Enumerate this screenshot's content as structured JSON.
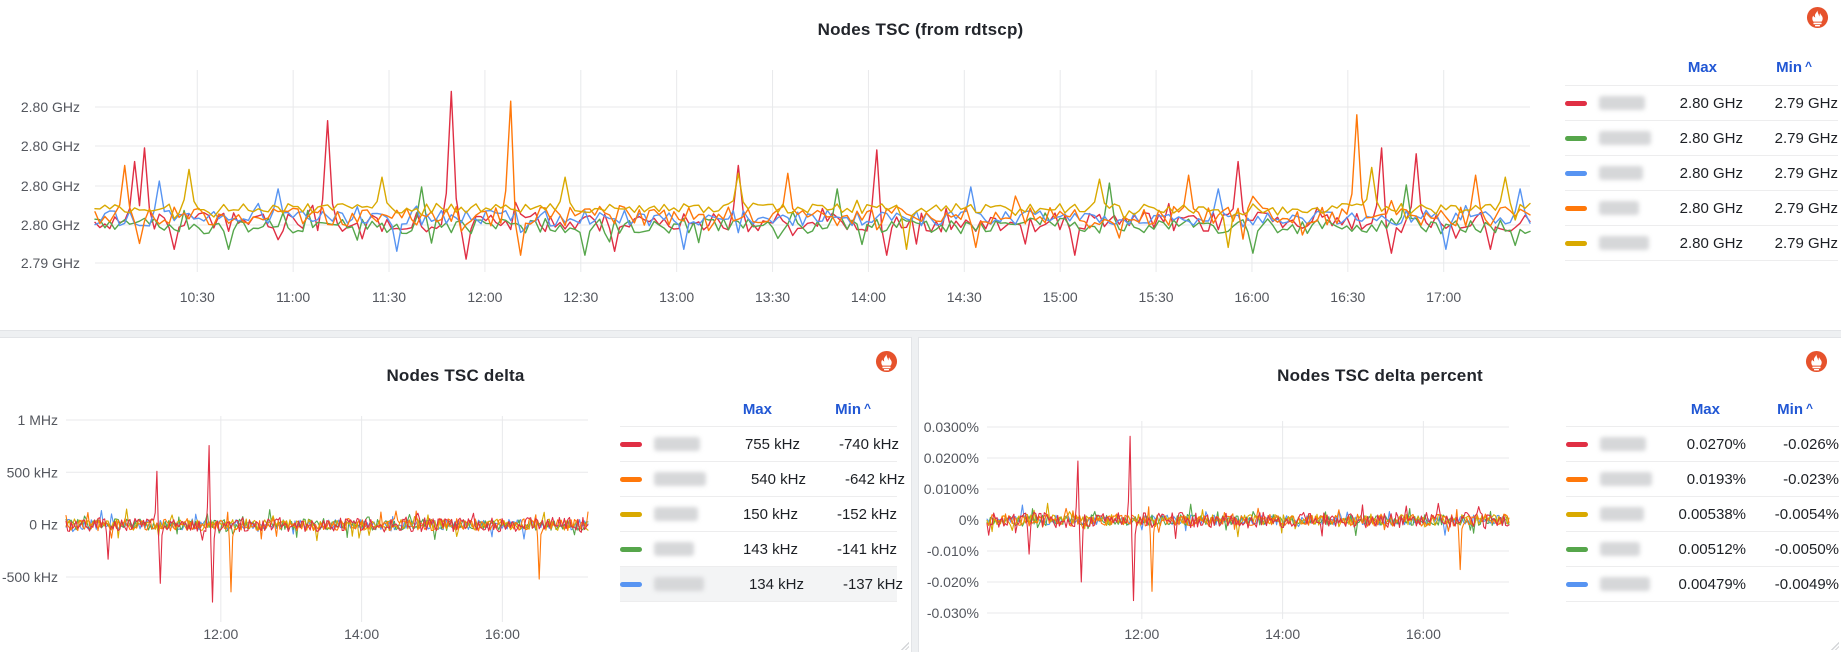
{
  "page": {
    "background": "#eef0f2",
    "panel_background": "#ffffff"
  },
  "palette": {
    "red": "#e02f44",
    "green": "#56a64b",
    "blue": "#5794f2",
    "orange": "#ff780a",
    "yellow": "#d9a900",
    "legend_header_blue": "#2157d4",
    "axis_text": "#54575e",
    "grid_line": "#e8e9eb",
    "prometheus_orange": "#e6522c"
  },
  "panels": [
    {
      "id": "nodes-tsc",
      "datasource_icon": "prometheus",
      "legend": {
        "max_label": "Max",
        "min_label": "Min",
        "sort_caret": "^",
        "highlighted_row": -1
      }
    },
    {
      "id": "nodes-tsc-delta",
      "datasource_icon": "prometheus",
      "legend": {
        "max_label": "Max",
        "min_label": "Min",
        "sort_caret": "^",
        "highlighted_row": 4
      }
    },
    {
      "id": "nodes-tsc-delta-percent",
      "datasource_icon": "prometheus",
      "legend": {
        "max_label": "Max",
        "min_label": "Min",
        "sort_caret": "^",
        "highlighted_row": -1
      }
    }
  ],
  "chart_data": [
    {
      "id": "nodes-tsc",
      "type": "line",
      "title": "Nodes TSC (from rdtscp)",
      "unit": "GHz",
      "x_range_minutes": [
        598,
        1047
      ],
      "x_ticks": [
        {
          "m": 630,
          "label": "10:30"
        },
        {
          "m": 660,
          "label": "11:00"
        },
        {
          "m": 690,
          "label": "11:30"
        },
        {
          "m": 720,
          "label": "12:00"
        },
        {
          "m": 750,
          "label": "12:30"
        },
        {
          "m": 780,
          "label": "13:00"
        },
        {
          "m": 810,
          "label": "13:30"
        },
        {
          "m": 840,
          "label": "14:00"
        },
        {
          "m": 870,
          "label": "14:30"
        },
        {
          "m": 900,
          "label": "15:00"
        },
        {
          "m": 930,
          "label": "15:30"
        },
        {
          "m": 960,
          "label": "16:00"
        },
        {
          "m": 990,
          "label": "16:30"
        },
        {
          "m": 1020,
          "label": "17:00"
        }
      ],
      "y_ticks": [
        {
          "v": 2.802,
          "label": "2.80 GHz"
        },
        {
          "v": 2.8,
          "label": "2.80 GHz"
        },
        {
          "v": 2.798,
          "label": "2.80 GHz"
        },
        {
          "v": 2.796,
          "label": "2.80 GHz"
        },
        {
          "v": 2.794,
          "label": "2.79 GHz"
        }
      ],
      "legend_position": "right",
      "grid": true,
      "draw_order": [
        "red",
        "green",
        "blue",
        "orange",
        "yellow"
      ],
      "series": [
        {
          "color": "red",
          "label_redacted": true,
          "max": "2.80 GHz",
          "min": "2.79 GHz",
          "baseline": 2.7961,
          "noise": 0.0005,
          "spikes": [
            {
              "t": 610,
              "v": 2.7992
            },
            {
              "t": 614,
              "v": 2.7999
            },
            {
              "t": 622,
              "v": 2.7947
            },
            {
              "t": 670,
              "v": 2.8013
            },
            {
              "t": 710,
              "v": 2.8028
            },
            {
              "t": 714,
              "v": 2.7942
            },
            {
              "t": 760,
              "v": 2.7946
            },
            {
              "t": 800,
              "v": 2.799
            },
            {
              "t": 842,
              "v": 2.7998
            },
            {
              "t": 845,
              "v": 2.7944
            },
            {
              "t": 905,
              "v": 2.7944
            },
            {
              "t": 955,
              "v": 2.7992
            },
            {
              "t": 1000,
              "v": 2.7999
            },
            {
              "t": 1003,
              "v": 2.7945
            },
            {
              "t": 1012,
              "v": 2.7996
            },
            {
              "t": 1035,
              "v": 2.7947
            }
          ]
        },
        {
          "color": "green",
          "label_redacted": true,
          "max": "2.80 GHz",
          "min": "2.79 GHz",
          "baseline": 2.7959,
          "noise": 0.0004,
          "spikes": [
            {
              "t": 640,
              "v": 2.7947
            },
            {
              "t": 700,
              "v": 2.7979
            },
            {
              "t": 752,
              "v": 2.7944
            },
            {
              "t": 830,
              "v": 2.7978
            },
            {
              "t": 915,
              "v": 2.7981
            },
            {
              "t": 960,
              "v": 2.7945
            },
            {
              "t": 1008,
              "v": 2.798
            },
            {
              "t": 1042,
              "v": 2.7949
            }
          ]
        },
        {
          "color": "blue",
          "label_redacted": true,
          "max": "2.80 GHz",
          "min": "2.79 GHz",
          "baseline": 2.7963,
          "noise": 0.0004,
          "spikes": [
            {
              "t": 618,
              "v": 2.7982
            },
            {
              "t": 655,
              "v": 2.7978
            },
            {
              "t": 692,
              "v": 2.7946
            },
            {
              "t": 782,
              "v": 2.7947
            },
            {
              "t": 872,
              "v": 2.7979
            },
            {
              "t": 950,
              "v": 2.7978
            },
            {
              "t": 1020,
              "v": 2.7947
            },
            {
              "t": 1044,
              "v": 2.7978
            }
          ]
        },
        {
          "color": "orange",
          "label_redacted": true,
          "max": "2.80 GHz",
          "min": "2.79 GHz",
          "baseline": 2.7964,
          "noise": 0.0005,
          "spikes": [
            {
              "t": 608,
              "v": 2.799
            },
            {
              "t": 612,
              "v": 2.795
            },
            {
              "t": 728,
              "v": 2.8023
            },
            {
              "t": 731,
              "v": 2.7944
            },
            {
              "t": 815,
              "v": 2.7986
            },
            {
              "t": 873,
              "v": 2.7948
            },
            {
              "t": 940,
              "v": 2.7985
            },
            {
              "t": 993,
              "v": 2.8016
            },
            {
              "t": 1030,
              "v": 2.7985
            }
          ]
        },
        {
          "color": "yellow",
          "label_redacted": true,
          "max": "2.80 GHz",
          "min": "2.79 GHz",
          "baseline": 2.7968,
          "noise": 0.00025,
          "spikes": [
            {
              "t": 628,
              "v": 2.7988
            },
            {
              "t": 688,
              "v": 2.7984
            },
            {
              "t": 745,
              "v": 2.7984
            },
            {
              "t": 800,
              "v": 2.7986
            },
            {
              "t": 852,
              "v": 2.7947
            },
            {
              "t": 912,
              "v": 2.7983
            },
            {
              "t": 952,
              "v": 2.7948
            },
            {
              "t": 997,
              "v": 2.7989
            },
            {
              "t": 1040,
              "v": 2.7984
            }
          ]
        }
      ]
    },
    {
      "id": "nodes-tsc-delta",
      "type": "line",
      "title": "Nodes TSC delta",
      "unit": "Hz",
      "x_range_minutes": [
        588,
        1033
      ],
      "x_ticks": [
        {
          "m": 720,
          "label": "12:00"
        },
        {
          "m": 840,
          "label": "14:00"
        },
        {
          "m": 960,
          "label": "16:00"
        }
      ],
      "y_ticks": [
        {
          "v": 1000,
          "label": "1 MHz"
        },
        {
          "v": 500,
          "label": "500 kHz"
        },
        {
          "v": 0,
          "label": "0 Hz"
        },
        {
          "v": -500,
          "label": "-500 kHz"
        }
      ],
      "y_unit_note": "values in kHz",
      "legend_position": "right",
      "grid": true,
      "draw_order": [
        "blue",
        "green",
        "yellow",
        "orange",
        "red"
      ],
      "series": [
        {
          "color": "red",
          "label_redacted": true,
          "max": "755 kHz",
          "min": "-740 kHz",
          "baseline": 0,
          "noise": 70,
          "spikes": [
            {
              "t": 622,
              "v": 250
            },
            {
              "t": 624,
              "v": -330
            },
            {
              "t": 666,
              "v": 510
            },
            {
              "t": 668,
              "v": -560
            },
            {
              "t": 710,
              "v": 755
            },
            {
              "t": 713,
              "v": -740
            }
          ]
        },
        {
          "color": "orange",
          "label_redacted": true,
          "max": "540 kHz",
          "min": "-642 kHz",
          "baseline": 0,
          "noise": 60,
          "spikes": [
            {
              "t": 727,
              "v": 540
            },
            {
              "t": 729,
              "v": -642
            },
            {
              "t": 990,
              "v": 430
            },
            {
              "t": 992,
              "v": -520
            }
          ]
        },
        {
          "color": "yellow",
          "label_redacted": true,
          "max": "150 kHz",
          "min": "-152 kHz",
          "baseline": 0,
          "noise": 55,
          "spikes": [
            {
              "t": 640,
              "v": 150
            },
            {
              "t": 802,
              "v": -152
            }
          ]
        },
        {
          "color": "green",
          "label_redacted": true,
          "max": "143 kHz",
          "min": "-141 kHz",
          "baseline": 0,
          "noise": 55,
          "spikes": [
            {
              "t": 762,
              "v": 143
            },
            {
              "t": 902,
              "v": -141
            }
          ]
        },
        {
          "color": "blue",
          "label_redacted": true,
          "max": "134 kHz",
          "min": "-137 kHz",
          "baseline": 0,
          "noise": 50,
          "spikes": [
            {
              "t": 618,
              "v": 134
            },
            {
              "t": 978,
              "v": -137
            }
          ]
        }
      ]
    },
    {
      "id": "nodes-tsc-delta-percent",
      "type": "line",
      "title": "Nodes TSC delta percent",
      "unit": "%",
      "x_range_minutes": [
        588,
        1033
      ],
      "x_ticks": [
        {
          "m": 720,
          "label": "12:00"
        },
        {
          "m": 840,
          "label": "14:00"
        },
        {
          "m": 960,
          "label": "16:00"
        }
      ],
      "y_ticks": [
        {
          "v": 0.03,
          "label": "0.0300%"
        },
        {
          "v": 0.02,
          "label": "0.0200%"
        },
        {
          "v": 0.01,
          "label": "0.0100%"
        },
        {
          "v": 0,
          "label": "0%"
        },
        {
          "v": -0.01,
          "label": "-0.010%"
        },
        {
          "v": -0.02,
          "label": "-0.020%"
        },
        {
          "v": -0.03,
          "label": "-0.030%"
        }
      ],
      "legend_position": "right",
      "grid": true,
      "draw_order": [
        "blue",
        "green",
        "yellow",
        "orange",
        "red"
      ],
      "series": [
        {
          "color": "red",
          "label_redacted": true,
          "max": "0.0270%",
          "min": "-0.026%",
          "baseline": 0,
          "noise": 0.0025,
          "spikes": [
            {
              "t": 622,
              "v": 0.01
            },
            {
              "t": 624,
              "v": -0.011
            },
            {
              "t": 666,
              "v": 0.019
            },
            {
              "t": 668,
              "v": -0.02
            },
            {
              "t": 710,
              "v": 0.027
            },
            {
              "t": 713,
              "v": -0.026
            }
          ]
        },
        {
          "color": "orange",
          "label_redacted": true,
          "max": "0.0193%",
          "min": "-0.023%",
          "baseline": 0,
          "noise": 0.002,
          "spikes": [
            {
              "t": 727,
              "v": 0.0193
            },
            {
              "t": 729,
              "v": -0.023
            },
            {
              "t": 990,
              "v": 0.0152
            },
            {
              "t": 992,
              "v": -0.016
            }
          ]
        },
        {
          "color": "yellow",
          "label_redacted": true,
          "max": "0.00538%",
          "min": "-0.0054%",
          "baseline": 0,
          "noise": 0.0018,
          "spikes": [
            {
              "t": 640,
              "v": 0.0054
            },
            {
              "t": 802,
              "v": -0.0054
            }
          ]
        },
        {
          "color": "green",
          "label_redacted": true,
          "max": "0.00512%",
          "min": "-0.0050%",
          "baseline": 0,
          "noise": 0.0018,
          "spikes": [
            {
              "t": 762,
              "v": 0.0051
            },
            {
              "t": 902,
              "v": -0.005
            }
          ]
        },
        {
          "color": "blue",
          "label_redacted": true,
          "max": "0.00479%",
          "min": "-0.0049%",
          "baseline": 0,
          "noise": 0.0016,
          "spikes": [
            {
              "t": 618,
              "v": 0.0048
            },
            {
              "t": 978,
              "v": -0.0049
            }
          ]
        }
      ]
    }
  ]
}
